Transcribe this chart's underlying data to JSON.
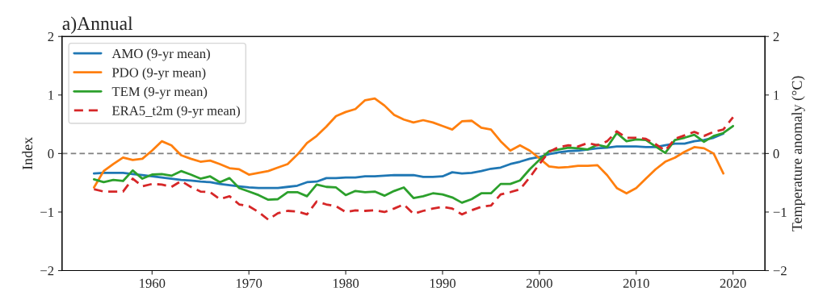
{
  "chart_data": {
    "type": "line",
    "title": "a)Annual",
    "ylabel": "Index",
    "y2label": "Temperature anomaly (°C)",
    "x": [
      1954,
      1955,
      1956,
      1957,
      1958,
      1959,
      1960,
      1961,
      1962,
      1963,
      1964,
      1965,
      1966,
      1967,
      1968,
      1969,
      1970,
      1971,
      1972,
      1973,
      1974,
      1975,
      1976,
      1977,
      1978,
      1979,
      1980,
      1981,
      1982,
      1983,
      1984,
      1985,
      1986,
      1987,
      1988,
      1989,
      1990,
      1991,
      1992,
      1993,
      1994,
      1995,
      1996,
      1997,
      1998,
      1999,
      2000,
      2001,
      2002,
      2003,
      2004,
      2005,
      2006,
      2007,
      2008,
      2009,
      2010,
      2011,
      2012,
      2013,
      2014,
      2015,
      2016,
      2017,
      2018,
      2019,
      2020
    ],
    "series": [
      {
        "name": "AMO (9-yr mean)",
        "color": "#1f77b4",
        "line_style": "solid",
        "values": [
          -0.34,
          -0.33,
          -0.33,
          -0.33,
          -0.35,
          -0.37,
          -0.39,
          -0.41,
          -0.43,
          -0.45,
          -0.46,
          -0.48,
          -0.49,
          -0.52,
          -0.54,
          -0.56,
          -0.58,
          -0.59,
          -0.59,
          -0.59,
          -0.57,
          -0.55,
          -0.49,
          -0.48,
          -0.42,
          -0.42,
          -0.41,
          -0.41,
          -0.39,
          -0.39,
          -0.38,
          -0.37,
          -0.37,
          -0.37,
          -0.4,
          -0.4,
          -0.39,
          -0.32,
          -0.34,
          -0.33,
          -0.3,
          -0.26,
          -0.24,
          -0.18,
          -0.14,
          -0.09,
          -0.06,
          -0.01,
          0.02,
          0.04,
          0.05,
          0.07,
          0.09,
          0.1,
          0.12,
          0.12,
          0.12,
          0.11,
          0.11,
          0.14,
          0.17,
          0.17,
          0.21,
          0.23,
          0.27,
          0.34,
          null
        ]
      },
      {
        "name": "PDO (9-yr mean)",
        "color": "#ff7f0e",
        "line_style": "solid",
        "values": [
          -0.58,
          -0.3,
          -0.18,
          -0.07,
          -0.11,
          -0.09,
          0.05,
          0.21,
          0.14,
          -0.03,
          -0.09,
          -0.14,
          -0.12,
          -0.18,
          -0.25,
          -0.27,
          -0.36,
          -0.33,
          -0.3,
          -0.24,
          -0.18,
          -0.02,
          0.18,
          0.3,
          0.46,
          0.64,
          0.71,
          0.76,
          0.91,
          0.94,
          0.82,
          0.66,
          0.58,
          0.53,
          0.57,
          0.53,
          0.47,
          0.41,
          0.55,
          0.56,
          0.44,
          0.41,
          0.21,
          0.05,
          0.14,
          0.05,
          -0.08,
          -0.22,
          -0.24,
          -0.23,
          -0.21,
          -0.21,
          -0.2,
          -0.37,
          -0.59,
          -0.68,
          -0.59,
          -0.43,
          -0.27,
          -0.14,
          -0.07,
          0.03,
          0.11,
          0.09,
          0.0,
          -0.34,
          null
        ]
      },
      {
        "name": "TEM (9-yr mean)",
        "color": "#2ca02c",
        "line_style": "solid",
        "values": [
          -0.44,
          -0.49,
          -0.45,
          -0.47,
          -0.29,
          -0.43,
          -0.36,
          -0.35,
          -0.38,
          -0.3,
          -0.36,
          -0.43,
          -0.39,
          -0.49,
          -0.42,
          -0.59,
          -0.65,
          -0.71,
          -0.79,
          -0.78,
          -0.66,
          -0.66,
          -0.73,
          -0.53,
          -0.57,
          -0.58,
          -0.71,
          -0.64,
          -0.66,
          -0.65,
          -0.72,
          -0.64,
          -0.58,
          -0.76,
          -0.73,
          -0.68,
          -0.7,
          -0.75,
          -0.84,
          -0.78,
          -0.68,
          -0.68,
          -0.52,
          -0.52,
          -0.46,
          -0.27,
          -0.11,
          0.04,
          0.07,
          0.1,
          0.09,
          0.07,
          0.15,
          0.11,
          0.35,
          0.21,
          0.24,
          0.23,
          0.12,
          0.01,
          0.23,
          0.27,
          0.32,
          0.2,
          0.3,
          0.35,
          0.47
        ]
      },
      {
        "name": "ERA5_t2m (9-yr mean)",
        "color": "#d62728",
        "line_style": "dashed",
        "values": [
          -0.61,
          -0.65,
          -0.65,
          -0.65,
          -0.43,
          -0.56,
          -0.52,
          -0.53,
          -0.57,
          -0.47,
          -0.57,
          -0.65,
          -0.66,
          -0.78,
          -0.73,
          -0.87,
          -0.9,
          -1.0,
          -1.13,
          -1.02,
          -0.98,
          -0.99,
          -1.04,
          -0.82,
          -0.87,
          -0.9,
          -1.0,
          -0.97,
          -0.98,
          -0.97,
          -1.0,
          -0.94,
          -0.87,
          -1.03,
          -0.98,
          -0.94,
          -0.91,
          -0.94,
          -1.04,
          -0.97,
          -0.91,
          -0.89,
          -0.7,
          -0.66,
          -0.61,
          -0.41,
          -0.18,
          0.03,
          0.11,
          0.14,
          0.12,
          0.18,
          0.14,
          0.21,
          0.38,
          0.27,
          0.27,
          0.25,
          0.16,
          0.05,
          0.25,
          0.31,
          0.37,
          0.3,
          0.37,
          0.41,
          0.62
        ]
      }
    ],
    "xlim": [
      1950.7,
      2023.3
    ],
    "xticks": [
      1960,
      1970,
      1980,
      1990,
      2000,
      2010,
      2020
    ],
    "ylim": [
      -2,
      2
    ],
    "yticks": [
      {
        "value": -2,
        "label": "−2"
      },
      {
        "value": -1,
        "label": "−1"
      },
      0,
      1,
      2
    ],
    "y2lim": [
      -2,
      2
    ],
    "y2ticks": [
      {
        "value": -2,
        "label": "−2"
      },
      {
        "value": -1,
        "label": "−1"
      },
      0,
      1,
      2
    ],
    "ref_lines": [
      {
        "axis": "y",
        "value": 0,
        "color": "#808080",
        "line_style": "dashed"
      }
    ],
    "legend": "top left",
    "grid": false
  }
}
